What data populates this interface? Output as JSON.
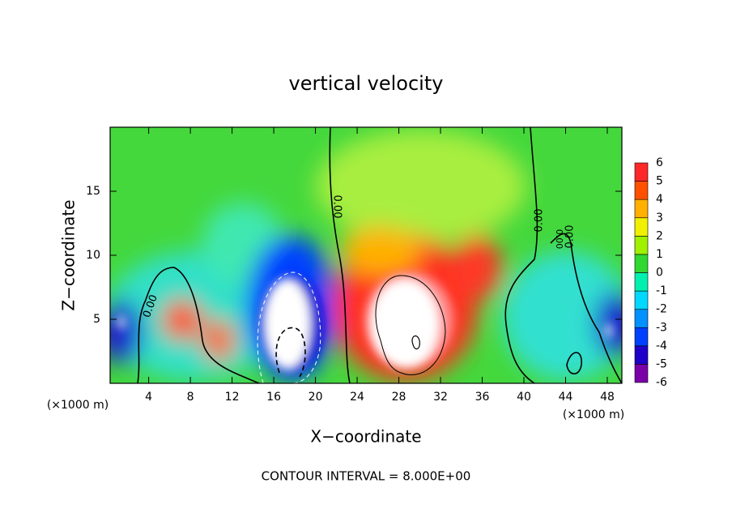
{
  "chart_data": {
    "type": "contour",
    "title": "vertical velocity",
    "x_label": "X−coordinate",
    "y_label": "Z−coordinate",
    "x_unit": "(×1000 m)",
    "footer": "CONTOUR INTERVAL = 8.000E+00",
    "xlim": [
      0.3,
      49.4
    ],
    "ylim": [
      0,
      20
    ],
    "xticks": [
      4,
      8,
      12,
      16,
      20,
      24,
      28,
      32,
      36,
      40,
      44,
      48
    ],
    "yticks": [
      5,
      10,
      15
    ],
    "colorbar": {
      "levels": [
        -6,
        -5,
        -4,
        -3,
        -2,
        -1,
        0,
        1,
        2,
        3,
        4,
        5,
        6
      ],
      "colors": [
        "#7a00a8",
        "#1e00c8",
        "#0040ff",
        "#0090ff",
        "#00d8ff",
        "#00f0b0",
        "#30d830",
        "#a0f000",
        "#f0f000",
        "#ffb000",
        "#ff5000",
        "#ff2828"
      ]
    },
    "contour_labels": [
      "0.00",
      "0.00",
      "0.00",
      "0.00",
      "0.00"
    ]
  }
}
